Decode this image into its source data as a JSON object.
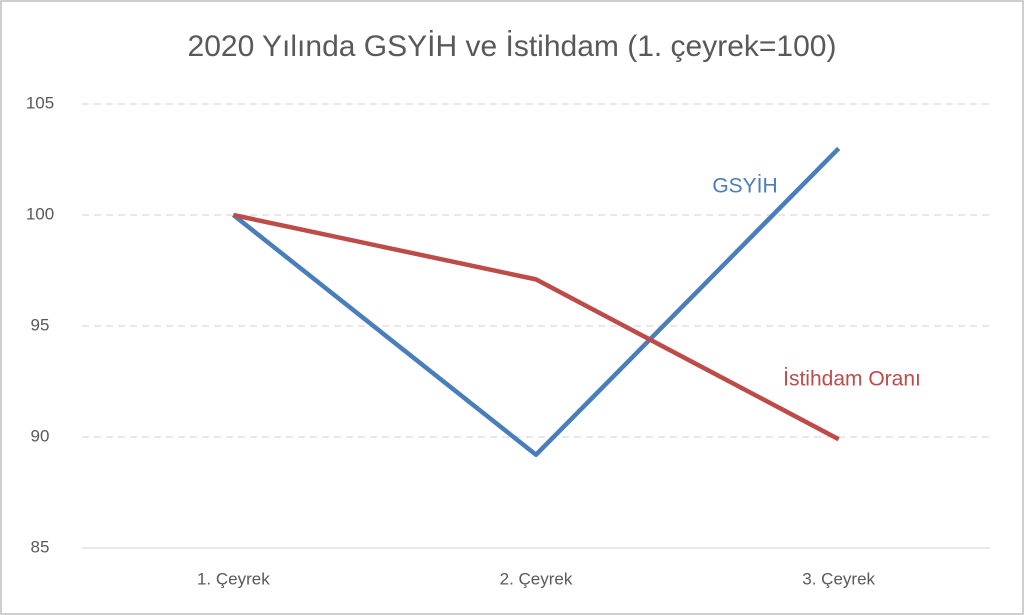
{
  "chart_data": {
    "type": "line",
    "title": "2020 Yılında GSYİH ve İstihdam (1. çeyrek=100)",
    "categories": [
      "1. Çeyrek",
      "2. Çeyrek",
      "3. Çeyrek"
    ],
    "series": [
      {
        "name": "GSYİH",
        "color": "#4a7ebb",
        "values": [
          100,
          89.2,
          103.0
        ]
      },
      {
        "name": "İstihdam Oranı",
        "color": "#be4b48",
        "values": [
          100,
          97.1,
          89.9
        ]
      }
    ],
    "ylim": [
      85,
      105
    ],
    "yticks": [
      85,
      90,
      95,
      100,
      105
    ],
    "grid": true
  }
}
